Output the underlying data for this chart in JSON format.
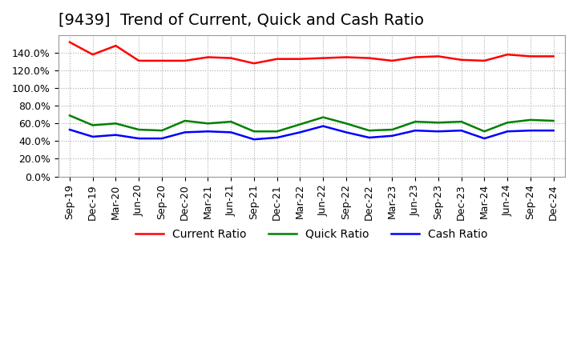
{
  "title": "[9439]  Trend of Current, Quick and Cash Ratio",
  "x_labels": [
    "Sep-19",
    "Dec-19",
    "Mar-20",
    "Jun-20",
    "Sep-20",
    "Dec-20",
    "Mar-21",
    "Jun-21",
    "Sep-21",
    "Dec-21",
    "Mar-22",
    "Jun-22",
    "Sep-22",
    "Dec-22",
    "Mar-23",
    "Jun-23",
    "Sep-23",
    "Dec-23",
    "Mar-24",
    "Jun-24",
    "Sep-24",
    "Dec-24"
  ],
  "current_ratio": [
    152,
    138,
    148,
    131,
    131,
    131,
    135,
    134,
    128,
    133,
    133,
    134,
    135,
    134,
    131,
    135,
    136,
    132,
    131,
    138,
    136,
    136
  ],
  "quick_ratio": [
    69,
    58,
    60,
    53,
    52,
    63,
    60,
    62,
    51,
    51,
    59,
    67,
    60,
    52,
    53,
    62,
    61,
    62,
    51,
    61,
    64,
    63
  ],
  "cash_ratio": [
    53,
    45,
    47,
    43,
    43,
    50,
    51,
    50,
    42,
    44,
    50,
    57,
    50,
    44,
    46,
    52,
    51,
    52,
    43,
    51,
    52,
    52
  ],
  "ylim": [
    0,
    160
  ],
  "yticks": [
    0,
    20,
    40,
    60,
    80,
    100,
    120,
    140
  ],
  "current_color": "#FF0000",
  "quick_color": "#008000",
  "cash_color": "#0000FF",
  "background_color": "#FFFFFF",
  "grid_color": "#AAAAAA",
  "title_fontsize": 14,
  "legend_fontsize": 10,
  "tick_fontsize": 9
}
